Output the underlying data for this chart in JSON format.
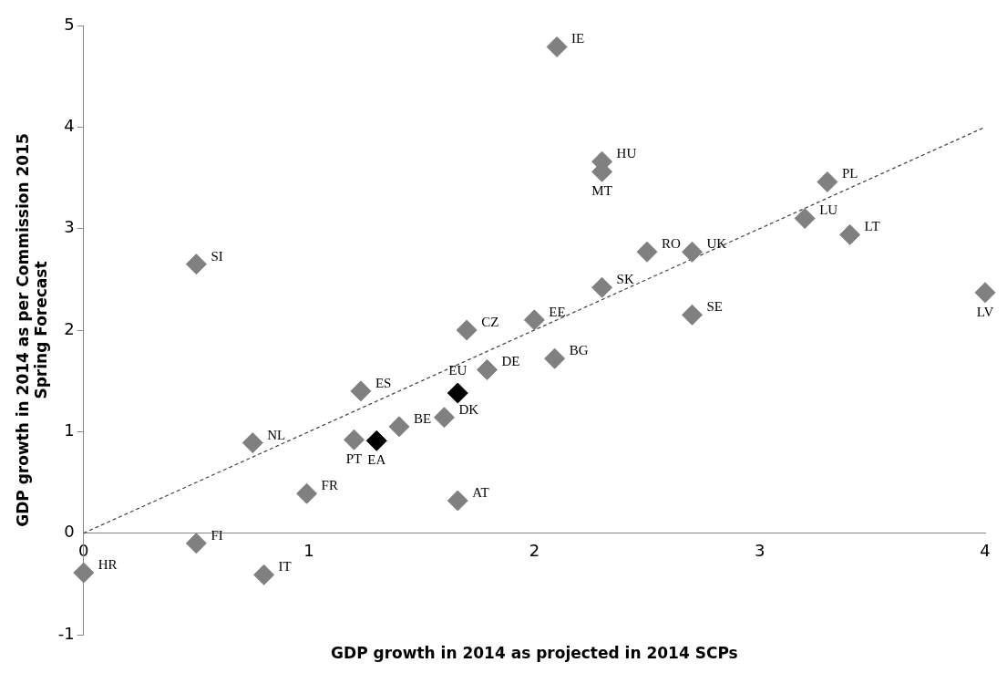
{
  "chart_data": {
    "type": "scatter",
    "xlabel": "GDP growth in 2014 as projected in 2014 SCPs",
    "ylabel": "GDP growth in 2014 as per Commission 2015\nSpring Forecast",
    "xlim": [
      0,
      4
    ],
    "ylim": [
      -1,
      5
    ],
    "xticks": [
      0,
      1,
      2,
      3,
      4
    ],
    "yticks": [
      -1,
      0,
      1,
      2,
      3,
      4,
      5
    ],
    "grid": false,
    "legend": false,
    "marker": "diamond",
    "series": [
      {
        "color": "#808080",
        "colors": [
          "#808080",
          "#808080",
          "#808080",
          "#808080",
          "#808080",
          "#808080",
          "#808080",
          "#808080",
          "#808080",
          "#808080",
          "#808080",
          "#808080",
          "#808080",
          "#808080",
          "#808080",
          "#808080",
          "#000000",
          "#808080",
          "#808080",
          "#808080",
          "#808080",
          "#000000",
          "#808080",
          "#808080",
          "#808080",
          "#808080",
          "#808080",
          "#808080"
        ],
        "x": [
          2.1,
          2.3,
          2.3,
          3.3,
          3.2,
          3.4,
          2.5,
          2.7,
          2.3,
          2.7,
          4.0,
          2.0,
          1.7,
          2.09,
          1.79,
          1.23,
          1.66,
          1.4,
          1.6,
          0.75,
          1.2,
          1.3,
          0.99,
          1.66,
          0.5,
          0.5,
          0.0,
          0.8
        ],
        "values": [
          4.79,
          3.66,
          3.56,
          3.46,
          3.1,
          2.94,
          2.77,
          2.77,
          2.42,
          2.15,
          2.37,
          2.1,
          2.0,
          1.72,
          1.61,
          1.4,
          1.38,
          1.05,
          1.14,
          0.89,
          0.92,
          0.91,
          0.39,
          0.32,
          2.65,
          -0.1,
          -0.39,
          -0.41
        ]
      },
      {
        "type": "line",
        "color": "#404040",
        "line_style": "dashed",
        "marker": "none",
        "x": [
          0,
          4
        ],
        "values": [
          0,
          4
        ]
      }
    ],
    "annotations": [
      {
        "text": "IE",
        "x": 2.1,
        "y": 4.79
      },
      {
        "text": "HU",
        "x": 2.3,
        "y": 3.66
      },
      {
        "text": "MT",
        "x": 2.3,
        "y": 3.56
      },
      {
        "text": "PL",
        "x": 3.3,
        "y": 3.46
      },
      {
        "text": "LU",
        "x": 3.2,
        "y": 3.1
      },
      {
        "text": "LT",
        "x": 3.4,
        "y": 2.94
      },
      {
        "text": "RO",
        "x": 2.5,
        "y": 2.77
      },
      {
        "text": "UK",
        "x": 2.7,
        "y": 2.77
      },
      {
        "text": "SK",
        "x": 2.3,
        "y": 2.42
      },
      {
        "text": "SE",
        "x": 2.7,
        "y": 2.15
      },
      {
        "text": "LV",
        "x": 4.0,
        "y": 2.37
      },
      {
        "text": "EE",
        "x": 2.0,
        "y": 2.1
      },
      {
        "text": "CZ",
        "x": 1.7,
        "y": 2.0
      },
      {
        "text": "BG",
        "x": 2.09,
        "y": 1.72
      },
      {
        "text": "DE",
        "x": 1.79,
        "y": 1.61
      },
      {
        "text": "ES",
        "x": 1.23,
        "y": 1.4
      },
      {
        "text": "EU",
        "x": 1.66,
        "y": 1.38
      },
      {
        "text": "BE",
        "x": 1.4,
        "y": 1.05
      },
      {
        "text": "DK",
        "x": 1.6,
        "y": 1.14
      },
      {
        "text": "NL",
        "x": 0.75,
        "y": 0.89
      },
      {
        "text": "PT",
        "x": 1.2,
        "y": 0.92
      },
      {
        "text": "EA",
        "x": 1.3,
        "y": 0.91
      },
      {
        "text": "FR",
        "x": 0.99,
        "y": 0.39
      },
      {
        "text": "AT",
        "x": 1.66,
        "y": 0.32
      },
      {
        "text": "SI",
        "x": 0.5,
        "y": 2.65
      },
      {
        "text": "FI",
        "x": 0.5,
        "y": -0.1
      },
      {
        "text": "HR",
        "x": 0.0,
        "y": -0.39
      },
      {
        "text": "IT",
        "x": 0.8,
        "y": -0.41
      }
    ]
  }
}
